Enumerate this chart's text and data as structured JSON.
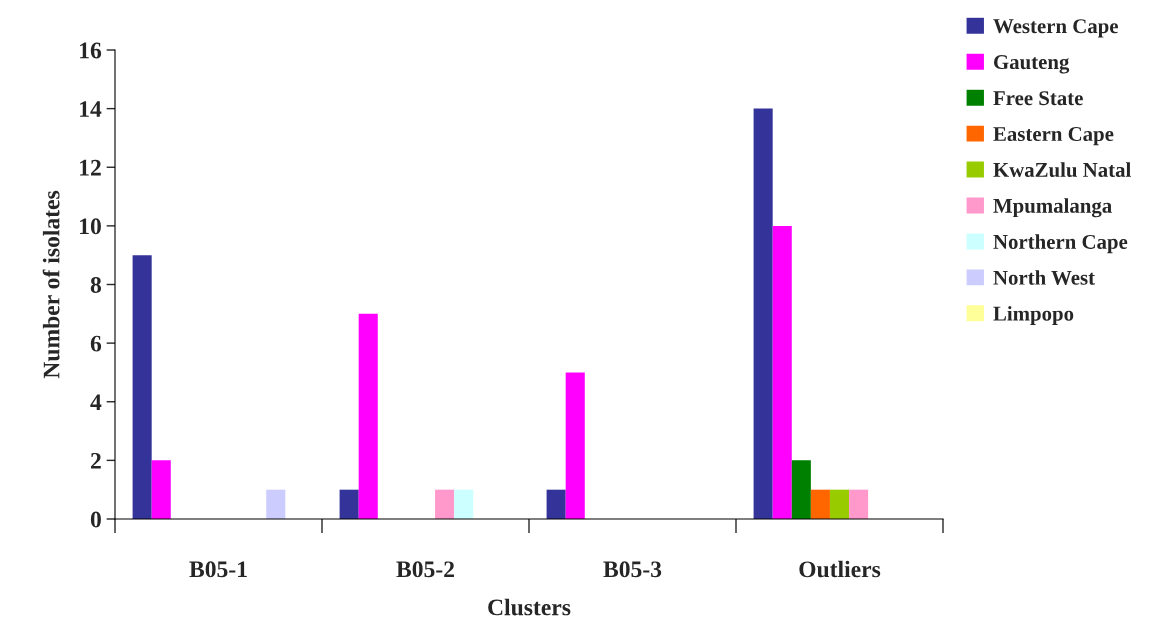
{
  "chart_data": {
    "type": "bar",
    "xlabel": "Clusters",
    "ylabel": "Number of isolates",
    "categories": [
      "B05-1",
      "B05-2",
      "B05-3",
      "Outliers"
    ],
    "series": [
      {
        "name": "Western Cape",
        "color": "#333399",
        "values": [
          9,
          1,
          1,
          14
        ]
      },
      {
        "name": "Gauteng",
        "color": "#ff00ff",
        "values": [
          2,
          7,
          5,
          10
        ]
      },
      {
        "name": "Free State",
        "color": "#008000",
        "values": [
          0,
          0,
          0,
          2
        ]
      },
      {
        "name": "Eastern Cape",
        "color": "#ff6600",
        "values": [
          0,
          0,
          0,
          1
        ]
      },
      {
        "name": "KwaZulu Natal",
        "color": "#99cc00",
        "values": [
          0,
          0,
          0,
          1
        ]
      },
      {
        "name": "Mpumalanga",
        "color": "#ff99cc",
        "values": [
          0,
          1,
          0,
          1
        ]
      },
      {
        "name": "Northern Cape",
        "color": "#ccffff",
        "values": [
          0,
          1,
          0,
          0
        ]
      },
      {
        "name": "North West",
        "color": "#ccccff",
        "values": [
          1,
          0,
          0,
          0
        ]
      },
      {
        "name": "Limpopo",
        "color": "#ffff99",
        "values": [
          0,
          0,
          0,
          0
        ]
      }
    ],
    "ylim": [
      0,
      16
    ],
    "yticks": [
      0,
      2,
      4,
      6,
      8,
      10,
      12,
      14,
      16
    ],
    "grid": false,
    "legend": "right"
  }
}
